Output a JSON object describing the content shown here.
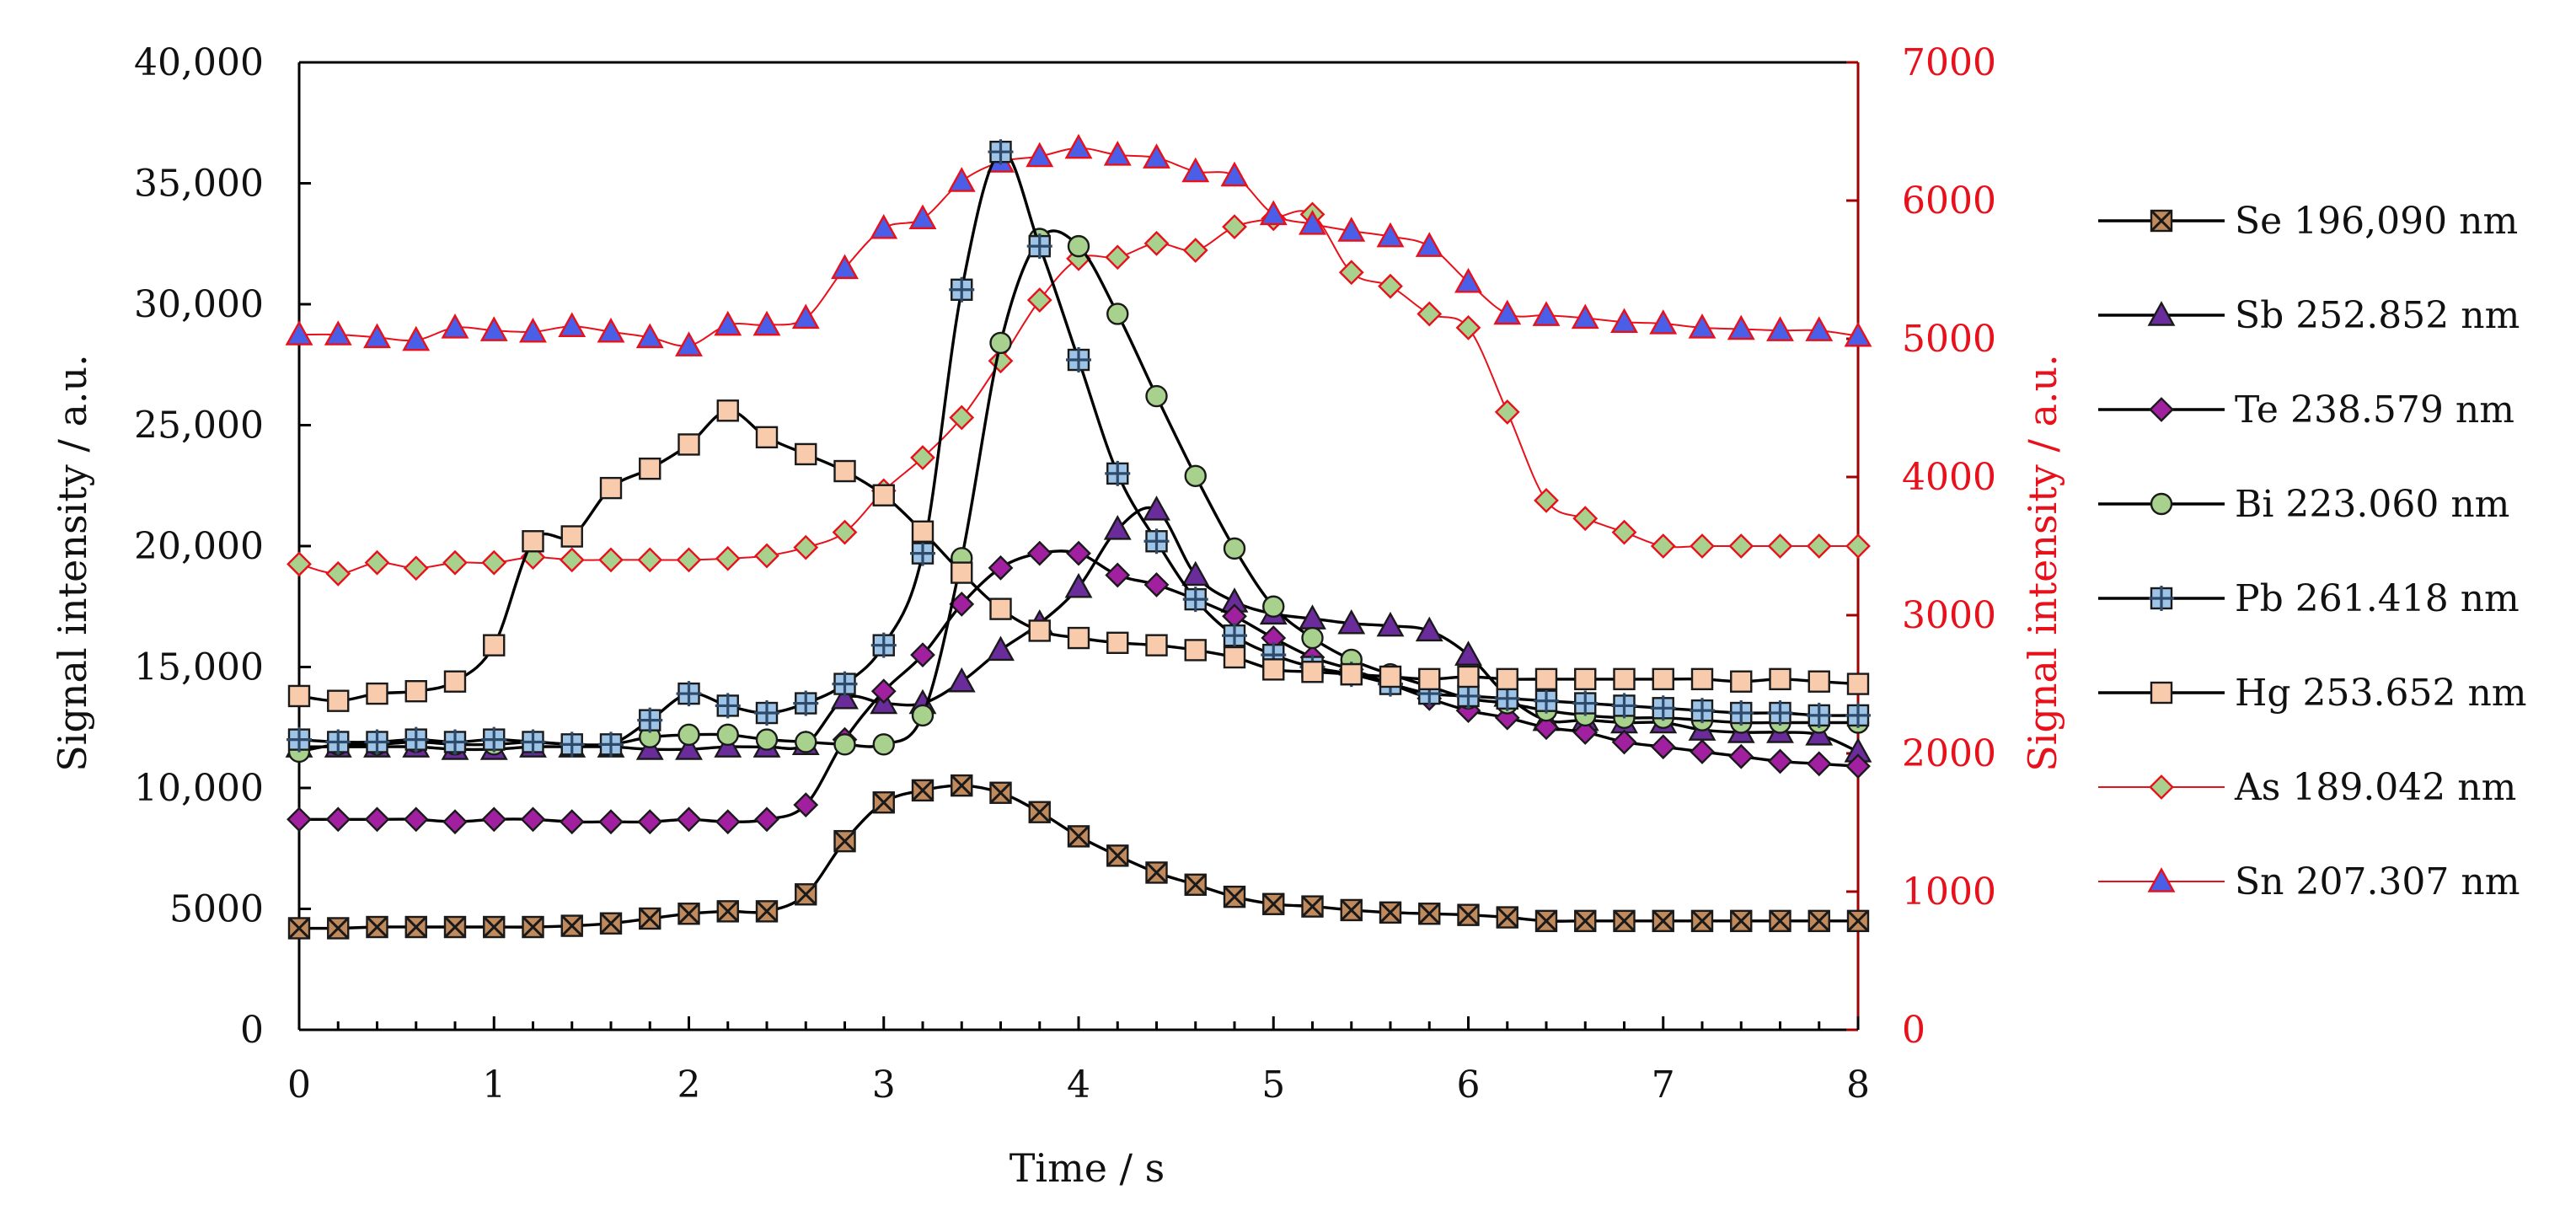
{
  "chart_data": {
    "type": "line",
    "title": "",
    "xlabel": "Time / s",
    "ylabel": "Signal intensity / a.u.",
    "y2label": "Signal intensity / a.u.",
    "xlim": [
      0,
      8
    ],
    "ylim": [
      0,
      40000
    ],
    "y2lim": [
      0,
      7000
    ],
    "x_ticks": [
      "0",
      "1",
      "2",
      "3",
      "4",
      "5",
      "6",
      "7",
      "8"
    ],
    "y_ticks": [
      "0",
      "5000",
      "10,000",
      "15,000",
      "20,000",
      "25,000",
      "30,000",
      "35,000",
      "40,000"
    ],
    "y2_ticks": [
      "0",
      "1000",
      "2000",
      "3000",
      "4000",
      "5000",
      "6000",
      "7000"
    ],
    "legend_position": "right",
    "grid": false,
    "x": [
      0,
      0.2,
      0.4,
      0.6,
      0.8,
      1.0,
      1.2,
      1.4,
      1.6,
      1.8,
      2.0,
      2.2,
      2.4,
      2.6,
      2.8,
      3.0,
      3.2,
      3.4,
      3.6,
      3.8,
      4.0,
      4.2,
      4.4,
      4.6,
      4.8,
      5.0,
      5.2,
      5.4,
      5.6,
      5.8,
      6.0,
      6.2,
      6.4,
      6.6,
      6.8,
      7.0,
      7.2,
      7.4,
      7.6,
      7.8,
      8.0
    ],
    "series": [
      {
        "name": "Se 196,090 nm",
        "axis": "left",
        "marker": "x-square",
        "line_color": "#000000",
        "marker_fill": "#c08a5c",
        "values": [
          4200,
          4200,
          4250,
          4250,
          4250,
          4250,
          4250,
          4300,
          4400,
          4600,
          4800,
          4900,
          4900,
          5600,
          7800,
          9400,
          9900,
          10100,
          9800,
          9000,
          8000,
          7200,
          6500,
          6000,
          5500,
          5200,
          5100,
          4950,
          4850,
          4800,
          4750,
          4650,
          4500,
          4500,
          4500,
          4500,
          4500,
          4500,
          4500,
          4500,
          4500
        ]
      },
      {
        "name": "Sb 252.852 nm",
        "axis": "left",
        "marker": "triangle",
        "line_color": "#000000",
        "marker_fill": "#6a2c9a",
        "values": [
          11700,
          11700,
          11700,
          11700,
          11600,
          11600,
          11700,
          11700,
          11700,
          11600,
          11600,
          11700,
          11700,
          11800,
          13700,
          13500,
          13500,
          14400,
          15700,
          16800,
          18300,
          20700,
          21500,
          18800,
          17700,
          17200,
          17000,
          16800,
          16700,
          16500,
          15500,
          13800,
          12800,
          12800,
          12700,
          12700,
          12400,
          12300,
          12300,
          12200,
          11500
        ]
      },
      {
        "name": "Te 238.579 nm",
        "axis": "left",
        "marker": "diamond",
        "line_color": "#000000",
        "marker_fill": "#a020a0",
        "values": [
          8700,
          8700,
          8700,
          8700,
          8600,
          8700,
          8700,
          8600,
          8600,
          8600,
          8700,
          8600,
          8700,
          9300,
          12000,
          14000,
          15500,
          17600,
          19100,
          19700,
          19700,
          18800,
          18400,
          17800,
          17100,
          16200,
          15400,
          14900,
          14300,
          13700,
          13200,
          12900,
          12500,
          12300,
          11900,
          11700,
          11500,
          11300,
          11100,
          11000,
          10900
        ]
      },
      {
        "name": "Bi 223.060 nm",
        "axis": "left",
        "marker": "circle",
        "line_color": "#000000",
        "marker_fill": "#a9d18e",
        "values": [
          11500,
          11800,
          11800,
          11900,
          11800,
          11800,
          11900,
          11800,
          11800,
          12100,
          12200,
          12200,
          12000,
          11900,
          11800,
          11800,
          13000,
          19500,
          28400,
          32700,
          32400,
          29600,
          26200,
          22900,
          19900,
          17500,
          16200,
          15300,
          14700,
          14200,
          13700,
          13500,
          13200,
          13000,
          12900,
          12900,
          12800,
          12700,
          12700,
          12700,
          12700
        ]
      },
      {
        "name": "Pb 261.418 nm",
        "axis": "left",
        "marker": "plus-square",
        "line_color": "#000000",
        "marker_fill": "#9dc3e6",
        "values": [
          12000,
          11900,
          11900,
          12000,
          11900,
          12000,
          11900,
          11800,
          11800,
          12800,
          13900,
          13400,
          13100,
          13500,
          14300,
          15900,
          19700,
          30600,
          36300,
          32400,
          27700,
          23000,
          20200,
          17800,
          16300,
          15500,
          15000,
          14700,
          14300,
          13900,
          13800,
          13700,
          13600,
          13500,
          13400,
          13300,
          13200,
          13100,
          13100,
          13000,
          13000
        ]
      },
      {
        "name": "Hg 253.652 nm",
        "axis": "left",
        "marker": "square",
        "line_color": "#000000",
        "marker_fill": "#f8cbad",
        "values": [
          13800,
          13600,
          13900,
          14000,
          14400,
          15900,
          20200,
          20400,
          22400,
          23200,
          24200,
          25600,
          24500,
          23800,
          23100,
          22100,
          20600,
          18900,
          17400,
          16500,
          16200,
          16000,
          15900,
          15700,
          15400,
          14900,
          14800,
          14700,
          14600,
          14500,
          14600,
          14500,
          14500,
          14500,
          14500,
          14500,
          14500,
          14400,
          14500,
          14400,
          14300
        ]
      },
      {
        "name": "As 189.042 nm",
        "axis": "right",
        "marker": "diamond",
        "line_color": "#e8101a",
        "marker_fill": "#a9d18e",
        "values": [
          3370,
          3300,
          3380,
          3340,
          3380,
          3380,
          3420,
          3400,
          3400,
          3400,
          3400,
          3410,
          3430,
          3490,
          3600,
          3900,
          4140,
          4430,
          4840,
          5280,
          5580,
          5590,
          5690,
          5640,
          5810,
          5870,
          5900,
          5480,
          5380,
          5180,
          5080,
          4470,
          3830,
          3700,
          3600,
          3500,
          3500,
          3500,
          3500,
          3500,
          3500
        ]
      },
      {
        "name": "Sn 207.307 nm",
        "axis": "right",
        "marker": "triangle",
        "line_color": "#e8101a",
        "marker_fill": "#4a5ee8",
        "values": [
          5030,
          5030,
          5010,
          4990,
          5080,
          5060,
          5050,
          5090,
          5050,
          5010,
          4950,
          5100,
          5100,
          5150,
          5510,
          5800,
          5870,
          6140,
          6280,
          6320,
          6380,
          6330,
          6310,
          6210,
          6180,
          5900,
          5830,
          5780,
          5740,
          5670,
          5410,
          5180,
          5170,
          5150,
          5120,
          5110,
          5080,
          5070,
          5060,
          5060,
          5020
        ]
      }
    ]
  }
}
